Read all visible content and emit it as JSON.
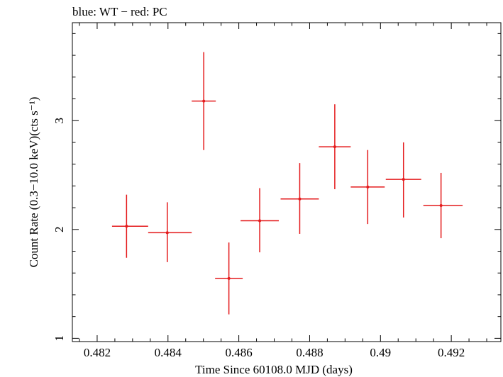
{
  "chart_data": {
    "type": "scatter",
    "title": "blue: WT − red: PC",
    "xlabel": "Time Since 60108.0 MJD (days)",
    "ylabel": "Count Rate (0.3−10.0 keV)(cts s⁻¹)",
    "xlim": [
      0.4813,
      0.4934
    ],
    "ylim": [
      0.97,
      3.9
    ],
    "x_ticks": [
      {
        "value": 0.482,
        "label": "0.482"
      },
      {
        "value": 0.484,
        "label": "0.484"
      },
      {
        "value": 0.486,
        "label": "0.486"
      },
      {
        "value": 0.488,
        "label": "0.488"
      },
      {
        "value": 0.49,
        "label": "0.49"
      },
      {
        "value": 0.492,
        "label": "0.492"
      }
    ],
    "y_ticks": [
      {
        "value": 1,
        "label": "1"
      },
      {
        "value": 2,
        "label": "2"
      },
      {
        "value": 3,
        "label": "3"
      }
    ],
    "grid": false,
    "series": [
      {
        "color": "#e41a1c",
        "points": [
          {
            "x": 0.48283,
            "xlo": 0.48242,
            "xhi": 0.48344,
            "y": 2.03,
            "ylo": 1.74,
            "yhi": 2.32
          },
          {
            "x": 0.48398,
            "xlo": 0.48344,
            "xhi": 0.48467,
            "y": 1.97,
            "ylo": 1.7,
            "yhi": 2.25
          },
          {
            "x": 0.48501,
            "xlo": 0.48467,
            "xhi": 0.48535,
            "y": 3.18,
            "ylo": 2.73,
            "yhi": 3.63
          },
          {
            "x": 0.48572,
            "xlo": 0.48533,
            "xhi": 0.48611,
            "y": 1.55,
            "ylo": 1.22,
            "yhi": 1.88
          },
          {
            "x": 0.48659,
            "xlo": 0.48605,
            "xhi": 0.48713,
            "y": 2.08,
            "ylo": 1.79,
            "yhi": 2.38
          },
          {
            "x": 0.48772,
            "xlo": 0.48718,
            "xhi": 0.48826,
            "y": 2.28,
            "ylo": 1.96,
            "yhi": 2.61
          },
          {
            "x": 0.48871,
            "xlo": 0.48826,
            "xhi": 0.48916,
            "y": 2.76,
            "ylo": 2.37,
            "yhi": 3.15
          },
          {
            "x": 0.48964,
            "xlo": 0.48916,
            "xhi": 0.49012,
            "y": 2.39,
            "ylo": 2.05,
            "yhi": 2.73
          },
          {
            "x": 0.49065,
            "xlo": 0.49015,
            "xhi": 0.49115,
            "y": 2.46,
            "ylo": 2.11,
            "yhi": 2.8
          },
          {
            "x": 0.49171,
            "xlo": 0.49121,
            "xhi": 0.49232,
            "y": 2.22,
            "ylo": 1.92,
            "yhi": 2.52
          }
        ]
      }
    ]
  }
}
